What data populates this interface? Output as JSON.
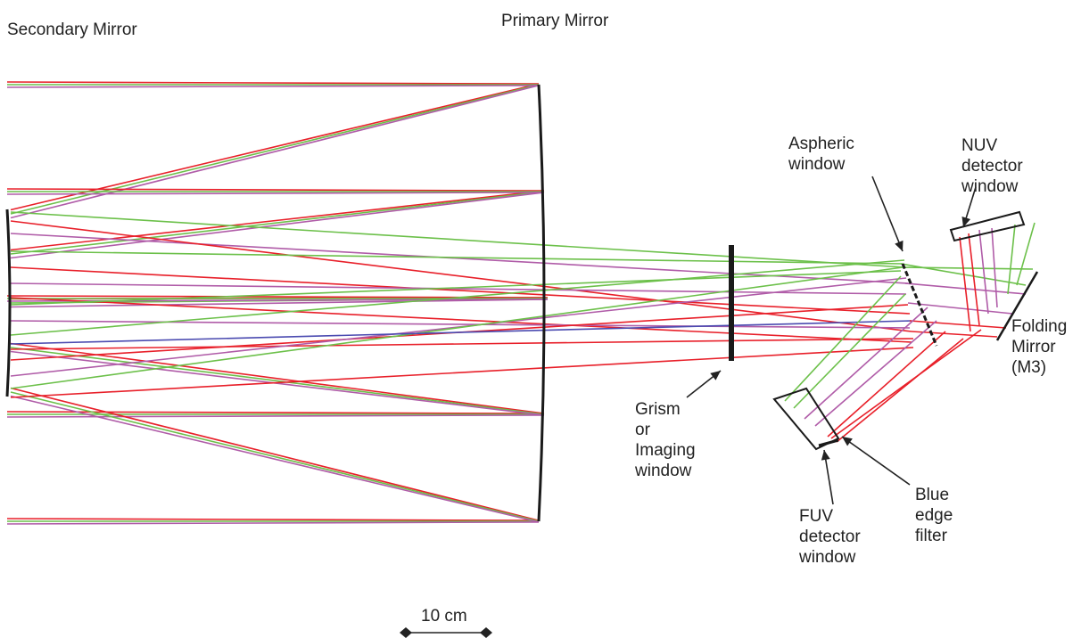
{
  "labels": {
    "secondary_mirror": "Secondary Mirror",
    "primary_mirror": "Primary Mirror",
    "aspheric_window": [
      "Aspheric",
      "window"
    ],
    "nuv_detector_window": [
      "NUV",
      "detector",
      "window"
    ],
    "folding_mirror": [
      "Folding",
      "Mirror",
      "(M3)"
    ],
    "grism": [
      "Grism",
      "or",
      "Imaging",
      "window"
    ],
    "fuv_detector_window": [
      "FUV",
      "detector",
      "window"
    ],
    "blue_edge_filter": [
      "Blue",
      "edge",
      "filter"
    ],
    "scale_bar": "10 cm"
  },
  "colors": {
    "ray_red": "#e8202a",
    "ray_green": "#6cc04a",
    "ray_purple": "#b05ca8",
    "ray_blue": "#4a4ab0",
    "optics": "#1a1a1a",
    "text": "#222222"
  }
}
